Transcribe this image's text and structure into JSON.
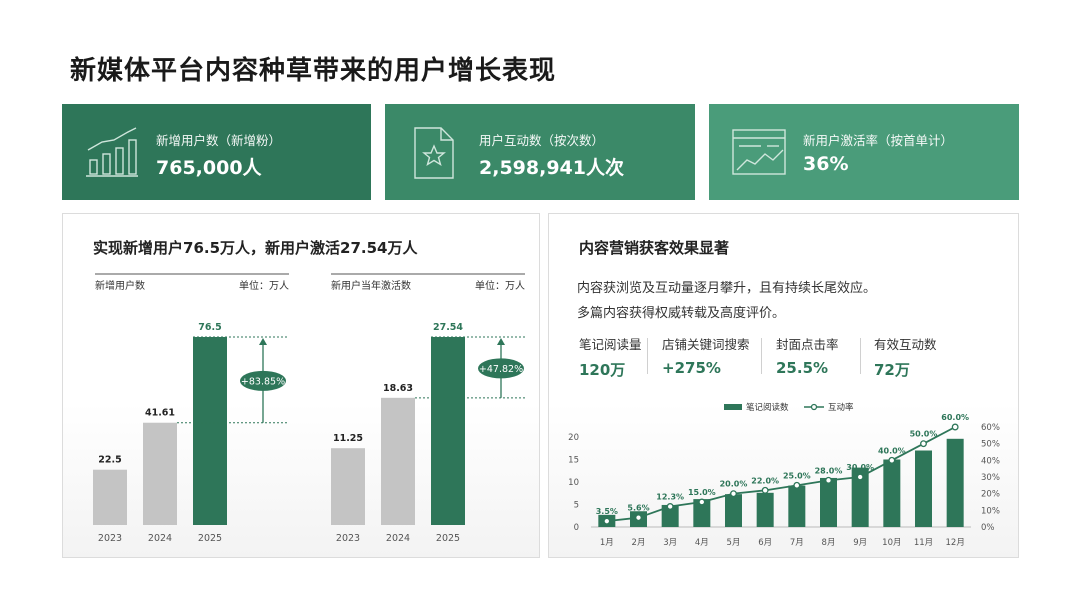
{
  "title": "新媒体平台内容种草带来的用户增长表现",
  "kpis": [
    {
      "label": "新增用户数（新增粉）",
      "value": "765,000人",
      "icon": "bar-chart-icon"
    },
    {
      "label": "用户互动数（按次数）",
      "value": "2,598,941人次",
      "icon": "star-document-icon"
    },
    {
      "label": "新用户激活率（按首单计）",
      "value": "36%",
      "icon": "line-chart-window-icon"
    }
  ],
  "left_panel": {
    "title": "实现新增用户76.5万人，新用户激活27.54万人"
  },
  "right_panel": {
    "title": "内容营销获客效果显著",
    "desc1": "内容获浏览及互动量逐月攀升，且有持续长尾效应。",
    "desc2": "多篇内容获得权威转载及高度评价。",
    "metrics": [
      {
        "label": "笔记阅读量",
        "value": "120万"
      },
      {
        "label": "店铺关键词搜索",
        "value": "+275%"
      },
      {
        "label": "封面点击率",
        "value": "25.5%"
      },
      {
        "label": "有效互动数",
        "value": "72万"
      }
    ]
  },
  "colors": {
    "dark_green": "#2e7659",
    "mid_green": "#3b8968",
    "light_green": "#4a9c7a",
    "gray_bar": "#c4c4c4"
  },
  "chart_data": [
    {
      "type": "bar",
      "subtitle": "新增用户数",
      "unit": "单位：万人",
      "categories": [
        "2023",
        "2024",
        "2025"
      ],
      "values": [
        22.5,
        41.61,
        76.5
      ],
      "value_labels": [
        "22.5",
        "41.61",
        "76.5"
      ],
      "growth_label": "+83.85%",
      "ylim": [
        0,
        76.5
      ]
    },
    {
      "type": "bar",
      "subtitle": "新用户当年激活数",
      "unit": "单位：万人",
      "categories": [
        "2023",
        "2024",
        "2025"
      ],
      "values": [
        11.25,
        18.63,
        27.54
      ],
      "value_labels": [
        "11.25",
        "18.63",
        "27.54"
      ],
      "growth_label": "+47.82%",
      "ylim": [
        0,
        27.54
      ]
    },
    {
      "type": "bar",
      "categories": [
        "1月",
        "2月",
        "3月",
        "4月",
        "5月",
        "6月",
        "7月",
        "8月",
        "9月",
        "10月",
        "11月",
        "12月"
      ],
      "series": [
        {
          "name": "笔记阅读数",
          "type": "bar",
          "axis": "left",
          "values": [
            2.7,
            3.5,
            4.9,
            6.2,
            7.3,
            7.6,
            9.2,
            10.9,
            13.2,
            15.0,
            17.0,
            19.6
          ]
        },
        {
          "name": "互动率",
          "type": "line",
          "axis": "right",
          "values": [
            3.5,
            5.6,
            12.3,
            15.0,
            20.0,
            22.0,
            25.0,
            28.0,
            30.0,
            40.0,
            50.0,
            60.0
          ],
          "labels": [
            "3.5%",
            "5.6%",
            "12.3%",
            "15.0%",
            "20.0%",
            "22.0%",
            "25.0%",
            "28.0%",
            "30.0%",
            "40.0%",
            "50.0%",
            "60.0%"
          ]
        }
      ],
      "y_left": {
        "ylim": [
          0,
          20
        ],
        "ticks": [
          "0",
          "5",
          "10",
          "15",
          "20"
        ]
      },
      "y_right": {
        "ylim": [
          0,
          60
        ],
        "ticks": [
          "0%",
          "10%",
          "20%",
          "30%",
          "40%",
          "50%",
          "60%"
        ]
      },
      "legend": "top-center"
    }
  ]
}
